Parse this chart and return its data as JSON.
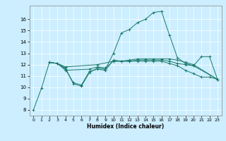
{
  "title": "",
  "xlabel": "Humidex (Indice chaleur)",
  "background_color": "#cceeff",
  "line_color": "#1a7a6a",
  "xlim": [
    -0.5,
    23.5
  ],
  "ylim": [
    7.5,
    17.2
  ],
  "xticks": [
    0,
    1,
    2,
    3,
    4,
    5,
    6,
    7,
    8,
    9,
    10,
    11,
    12,
    13,
    14,
    15,
    16,
    17,
    18,
    19,
    20,
    21,
    22,
    23
  ],
  "yticks": [
    8,
    9,
    10,
    11,
    12,
    13,
    14,
    15,
    16
  ],
  "series": [
    {
      "x": [
        0,
        1,
        2,
        3,
        4,
        5,
        6,
        7,
        8,
        9,
        10,
        11,
        12,
        13,
        14,
        15,
        16,
        17,
        18,
        19,
        20,
        21,
        22,
        23
      ],
      "y": [
        8.0,
        9.9,
        12.2,
        12.1,
        11.7,
        10.3,
        10.1,
        11.3,
        11.7,
        11.6,
        13.0,
        14.8,
        15.1,
        15.7,
        16.0,
        16.6,
        16.7,
        14.6,
        12.6,
        12.1,
        11.9,
        12.7,
        12.7,
        10.7
      ]
    },
    {
      "x": [
        2,
        3,
        4,
        8,
        10,
        11,
        12,
        13,
        14,
        15,
        16,
        17,
        18,
        19,
        20,
        23
      ],
      "y": [
        12.2,
        12.1,
        11.8,
        12.0,
        12.3,
        12.3,
        12.4,
        12.5,
        12.5,
        12.5,
        12.5,
        12.5,
        12.4,
        12.2,
        12.0,
        10.7
      ]
    },
    {
      "x": [
        2,
        3,
        4,
        7,
        8,
        9,
        10,
        11,
        12,
        13,
        14,
        15,
        16,
        17,
        18,
        19,
        20,
        23
      ],
      "y": [
        12.2,
        12.1,
        11.5,
        11.6,
        11.8,
        11.7,
        12.3,
        12.3,
        12.3,
        12.4,
        12.4,
        12.4,
        12.4,
        12.3,
        12.1,
        12.0,
        11.9,
        10.7
      ]
    },
    {
      "x": [
        2,
        3,
        4,
        5,
        6,
        7,
        8,
        9,
        10,
        11,
        12,
        13,
        14,
        15,
        16,
        17,
        18,
        19,
        20,
        21,
        22,
        23
      ],
      "y": [
        12.2,
        12.1,
        11.6,
        10.4,
        10.2,
        11.4,
        11.6,
        11.5,
        12.4,
        12.3,
        12.3,
        12.3,
        12.3,
        12.3,
        12.3,
        12.1,
        11.9,
        11.5,
        11.2,
        10.9,
        10.9,
        10.7
      ]
    }
  ]
}
